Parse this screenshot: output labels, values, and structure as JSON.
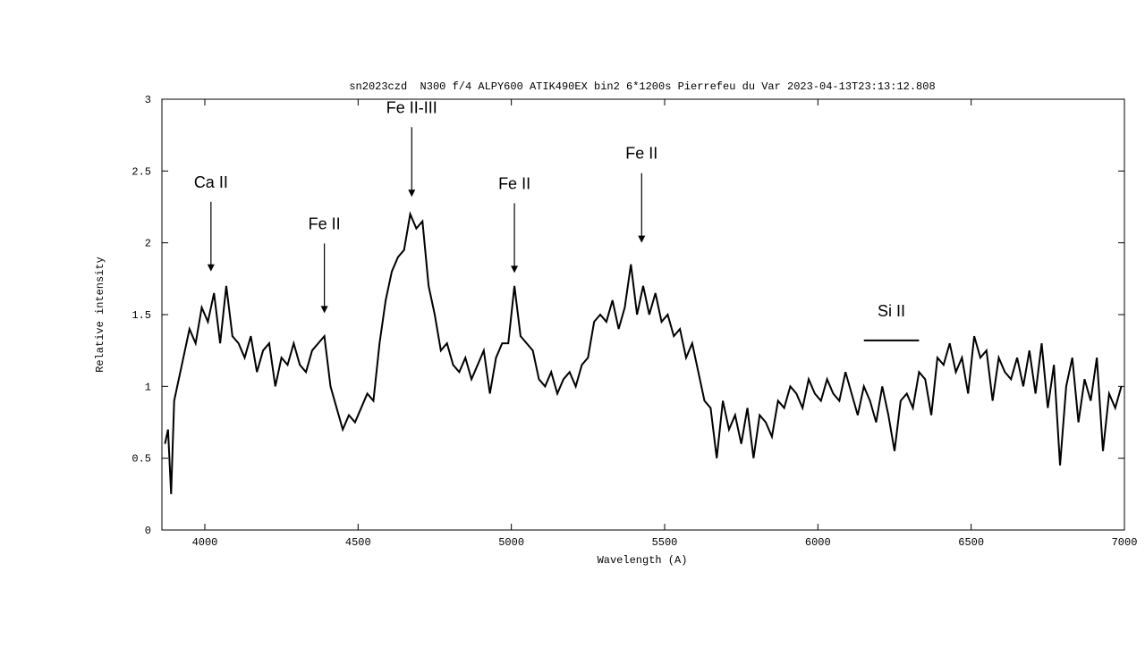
{
  "chart_data": {
    "type": "line",
    "title": "sn2023czd  N300 f/4 ALPY600 ATIK490EX bin2 6*1200s Pierrefeu du Var 2023-04-13T23:13:12.808",
    "x_label": "Wavelength (A)",
    "y_label": "Relative intensity",
    "color": "#000000",
    "xlim": [
      3860,
      7000
    ],
    "ylim": [
      0,
      3
    ],
    "xticks": [
      4000,
      4500,
      5000,
      5500,
      6000,
      6500,
      7000
    ],
    "yticks": [
      0,
      0.5,
      1,
      1.5,
      2,
      2.5,
      3
    ],
    "x": [
      3870,
      3880,
      3890,
      3900,
      3910,
      3930,
      3950,
      3970,
      3990,
      4010,
      4030,
      4050,
      4070,
      4090,
      4110,
      4130,
      4150,
      4170,
      4190,
      4210,
      4230,
      4250,
      4270,
      4290,
      4310,
      4330,
      4350,
      4370,
      4390,
      4410,
      4430,
      4450,
      4470,
      4490,
      4510,
      4530,
      4550,
      4570,
      4590,
      4610,
      4630,
      4650,
      4670,
      4690,
      4710,
      4730,
      4750,
      4770,
      4790,
      4810,
      4830,
      4850,
      4870,
      4890,
      4910,
      4930,
      4950,
      4970,
      4990,
      5010,
      5030,
      5050,
      5070,
      5090,
      5110,
      5130,
      5150,
      5170,
      5190,
      5210,
      5230,
      5250,
      5270,
      5290,
      5310,
      5330,
      5350,
      5370,
      5390,
      5410,
      5430,
      5450,
      5470,
      5490,
      5510,
      5530,
      5550,
      5570,
      5590,
      5610,
      5630,
      5650,
      5670,
      5690,
      5710,
      5730,
      5750,
      5770,
      5790,
      5810,
      5830,
      5850,
      5870,
      5890,
      5910,
      5930,
      5950,
      5970,
      5990,
      6010,
      6030,
      6050,
      6070,
      6090,
      6110,
      6130,
      6150,
      6170,
      6190,
      6210,
      6230,
      6250,
      6270,
      6290,
      6310,
      6330,
      6350,
      6370,
      6390,
      6410,
      6430,
      6450,
      6470,
      6490,
      6510,
      6530,
      6550,
      6570,
      6590,
      6610,
      6630,
      6650,
      6670,
      6690,
      6710,
      6730,
      6750,
      6770,
      6790,
      6810,
      6830,
      6850,
      6870,
      6890,
      6910,
      6930,
      6950,
      6970,
      6990
    ],
    "values": [
      0.6,
      0.7,
      0.25,
      0.9,
      1.0,
      1.2,
      1.4,
      1.3,
      1.55,
      1.45,
      1.65,
      1.3,
      1.7,
      1.35,
      1.3,
      1.2,
      1.35,
      1.1,
      1.25,
      1.3,
      1.0,
      1.2,
      1.15,
      1.3,
      1.15,
      1.1,
      1.25,
      1.3,
      1.35,
      1.0,
      0.85,
      0.7,
      0.8,
      0.75,
      0.85,
      0.95,
      0.9,
      1.3,
      1.6,
      1.8,
      1.9,
      1.95,
      2.2,
      2.1,
      2.15,
      1.7,
      1.5,
      1.25,
      1.3,
      1.15,
      1.1,
      1.2,
      1.05,
      1.15,
      1.25,
      0.95,
      1.2,
      1.3,
      1.3,
      1.7,
      1.35,
      1.3,
      1.25,
      1.05,
      1.0,
      1.1,
      0.95,
      1.05,
      1.1,
      1.0,
      1.15,
      1.2,
      1.45,
      1.5,
      1.45,
      1.6,
      1.4,
      1.55,
      1.85,
      1.5,
      1.7,
      1.5,
      1.65,
      1.45,
      1.5,
      1.35,
      1.4,
      1.2,
      1.3,
      1.1,
      0.9,
      0.85,
      0.5,
      0.9,
      0.7,
      0.8,
      0.6,
      0.85,
      0.5,
      0.8,
      0.75,
      0.65,
      0.9,
      0.85,
      1.0,
      0.95,
      0.85,
      1.05,
      0.95,
      0.9,
      1.05,
      0.95,
      0.9,
      1.1,
      0.95,
      0.8,
      1.0,
      0.9,
      0.75,
      1.0,
      0.8,
      0.55,
      0.9,
      0.95,
      0.85,
      1.1,
      1.05,
      0.8,
      1.2,
      1.15,
      1.3,
      1.1,
      1.2,
      0.95,
      1.35,
      1.2,
      1.25,
      0.9,
      1.2,
      1.1,
      1.05,
      1.2,
      1.0,
      1.25,
      0.95,
      1.3,
      0.85,
      1.15,
      0.45,
      1.0,
      1.2,
      0.75,
      1.05,
      0.9,
      1.2,
      0.55,
      0.95,
      0.85,
      1.0
    ],
    "annotations": [
      {
        "text": "Ca II",
        "x": 4020,
        "y": 1.8
      },
      {
        "text": "Fe II",
        "x": 4390,
        "y": 1.51
      },
      {
        "text": "Fe II-III",
        "x": 4675,
        "y": 2.32
      },
      {
        "text": "Fe II",
        "x": 5010,
        "y": 1.79
      },
      {
        "text": "Fe II",
        "x": 5425,
        "y": 2.0
      },
      {
        "text": "Si II",
        "x": [
          6150,
          6330
        ],
        "y": 1.32
      }
    ]
  }
}
